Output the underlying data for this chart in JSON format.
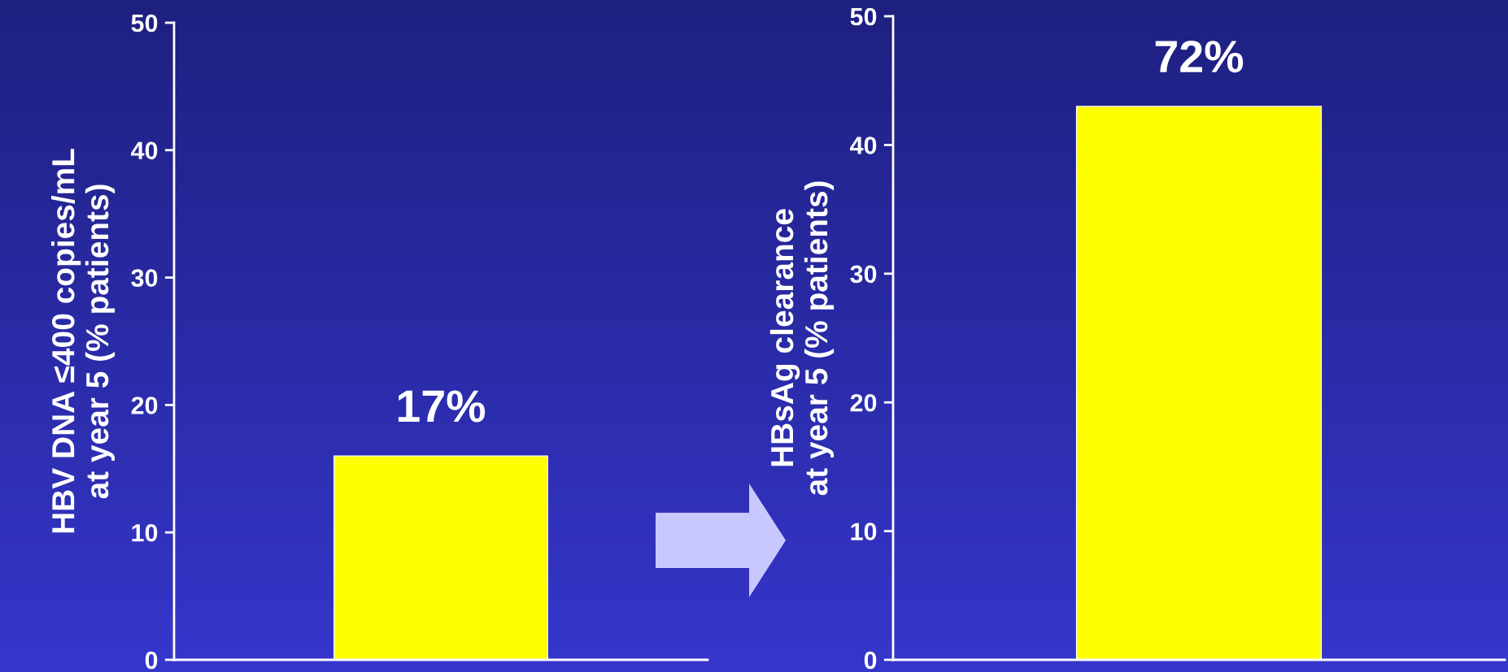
{
  "chart_data": [
    {
      "type": "bar",
      "ylabel": "HBV DNA ≤400 copies/mL\nat year 5 (% patients)",
      "categories": [
        null
      ],
      "values": [
        16
      ],
      "color": "#ffff00",
      "annotations": [
        "17%"
      ],
      "ylim": [
        0,
        50
      ],
      "yticks": [
        0,
        10,
        20,
        30,
        40,
        50
      ]
    },
    {
      "type": "bar",
      "ylabel": "HBsAg clearance\nat year 5 (% patients)",
      "categories": [
        null
      ],
      "values": [
        43
      ],
      "color": "#ffff00",
      "annotations": [
        "72%"
      ],
      "ylim": [
        0,
        50
      ],
      "yticks": [
        0,
        10,
        20,
        30,
        40,
        50
      ]
    }
  ]
}
